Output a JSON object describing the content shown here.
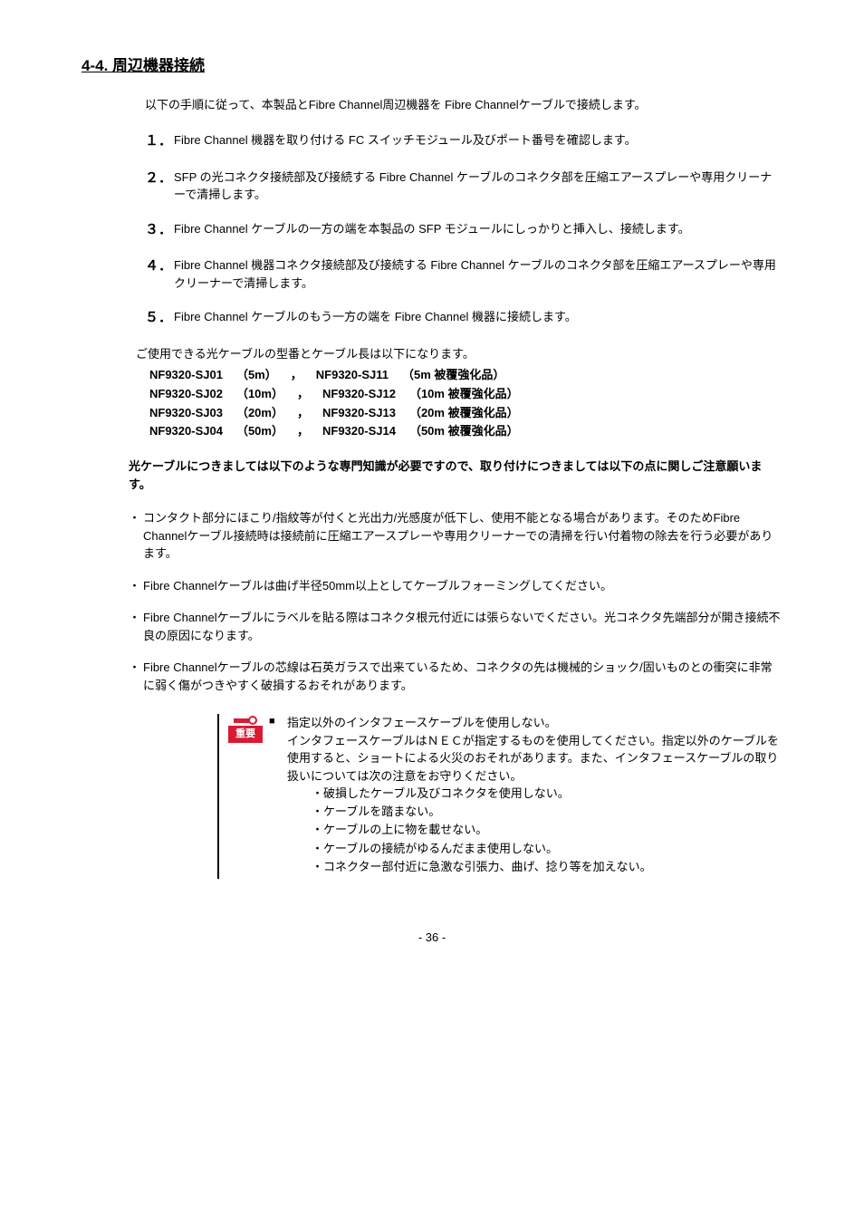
{
  "heading": "4-4. 周辺機器接続",
  "intro": "以下の手順に従って、本製品とFibre Channel周辺機器を Fibre Channelケーブルで接続します。",
  "steps": [
    {
      "num": "１．",
      "body": "Fibre Channel 機器を取り付ける FC スイッチモジュール及びポート番号を確認します。"
    },
    {
      "num": "２．",
      "body": "SFP の光コネクタ接続部及び接続する Fibre Channel ケーブルのコネクタ部を圧縮エアースプレーや専用クリーナーで清掃します。"
    },
    {
      "num": "３．",
      "body": "Fibre Channel ケーブルの一方の端を本製品の SFP モジュールにしっかりと挿入し、接続します。"
    },
    {
      "num": "４．",
      "body": "Fibre Channel 機器コネクタ接続部及び接続する Fibre Channel ケーブルのコネクタ部を圧縮エアースプレーや専用クリーナーで清掃します。"
    },
    {
      "num": "５．",
      "body": "Fibre Channel ケーブルのもう一方の端を Fibre Channel 機器に接続します。"
    }
  ],
  "cable_intro": "ご使用できる光ケーブルの型番とケーブル長は以下になります。",
  "cables": [
    {
      "pn1": "NF9320-SJ01",
      "len": "（5m）",
      "sep": "，",
      "pn2": "NF9320-SJ11",
      "desc": "（5m 被覆強化品）"
    },
    {
      "pn1": "NF9320-SJ02",
      "len": "（10m）",
      "sep": "，",
      "pn2": "NF9320-SJ12",
      "desc": "（10m 被覆強化品）"
    },
    {
      "pn1": "NF9320-SJ03",
      "len": "（20m）",
      "sep": "，",
      "pn2": "NF9320-SJ13",
      "desc": "（20m 被覆強化品）"
    },
    {
      "pn1": "NF9320-SJ04",
      "len": "（50m）",
      "sep": "，",
      "pn2": "NF9320-SJ14",
      "desc": "（50m 被覆強化品）"
    }
  ],
  "warn_title": "光ケーブルにつきましては以下のような専門知識が必要ですので、取り付けにつきましては以下の点に関しご注意願います。",
  "bullets": [
    "コンタクト部分にほこり/指紋等が付くと光出力/光感度が低下し、使用不能となる場合があります。そのためFibre Channelケーブル接続時は接続前に圧縮エアースプレーや専用クリーナーでの清掃を行い付着物の除去を行う必要があります。",
    "Fibre Channelケーブルは曲げ半径50mm以上としてケーブルフォーミングしてください。",
    "Fibre Channelケーブルにラベルを貼る際はコネクタ根元付近には張らないでください。光コネクタ先端部分が開き接続不良の原因になります。",
    "Fibre Channelケーブルの芯線は石英ガラスで出来ているため、コネクタの先は機械的ショック/固いものとの衝突に非常に弱く傷がつきやすく破損するおそれがあります。"
  ],
  "dot": "・",
  "badge": "重要",
  "square": "■",
  "imp_head": "指定以外のインタフェースケーブルを使用しない。",
  "imp_body": "インタフェースケーブルはＮＥＣが指定するものを使用してください。指定以外のケーブルを使用すると、ショートによる火災のおそれがあります。また、インタフェースケーブルの取り扱いについては次の注意をお守りください。",
  "sub_bullets": [
    "・破損したケーブル及びコネクタを使用しない。",
    "・ケーブルを踏まない。",
    "・ケーブルの上に物を載せない。",
    "・ケーブルの接続がゆるんだまま使用しない。",
    "・コネクター部付近に急激な引張力、曲げ、捻り等を加えない。"
  ],
  "page": "- 36 -"
}
